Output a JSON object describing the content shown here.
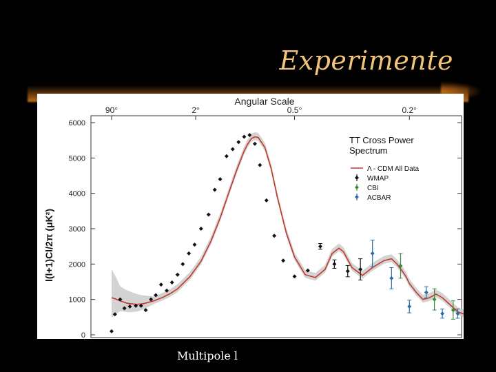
{
  "slide": {
    "title": "Experimente",
    "footer_label": "Multipole l"
  },
  "chart_data": {
    "type": "scatter",
    "title": "Angular Scale",
    "subtitle": "TT Cross Power\nSpectrum",
    "ylabel": "l(l+1)Cl/2π (μK²)",
    "ylim": [
      0,
      6000
    ],
    "yticks": [
      0,
      1000,
      2000,
      3000,
      4000,
      5000,
      6000
    ],
    "top_axis_ticks": [
      {
        "label": "90°",
        "l": 2
      },
      {
        "label": "2°",
        "l": 90
      },
      {
        "label": "0.5°",
        "l": 360
      },
      {
        "label": "0.2°",
        "l": 900
      }
    ],
    "grid": false,
    "legend_position": "top-right",
    "colors": {
      "model": "#c0392b",
      "band": "#c8c8c8",
      "wmap": "#111111",
      "cbi": "#3a8a3a",
      "acbar": "#2b6aa8"
    },
    "series": [
      {
        "name": "Λ - CDM All Data",
        "kind": "line",
        "x": [
          2,
          3,
          5,
          8,
          10,
          15,
          20,
          30,
          40,
          50,
          60,
          80,
          100,
          120,
          140,
          160,
          180,
          200,
          210,
          220,
          230,
          240,
          260,
          280,
          300,
          330,
          360,
          400,
          440,
          480,
          510,
          540,
          560,
          600,
          650,
          700,
          760,
          800,
          830,
          860,
          880,
          900,
          940,
          980,
          1020,
          1060,
          1100,
          1150,
          1200,
          1300
        ],
        "y": [
          1050,
          1020,
          960,
          900,
          880,
          860,
          880,
          960,
          1060,
          1170,
          1300,
          1650,
          2080,
          2650,
          3300,
          4000,
          4650,
          5200,
          5400,
          5550,
          5600,
          5580,
          5300,
          4700,
          3900,
          2900,
          2200,
          1700,
          1620,
          1850,
          2300,
          2450,
          2350,
          1900,
          1680,
          1900,
          2100,
          2150,
          2000,
          1800,
          1650,
          1450,
          1200,
          1000,
          1050,
          1150,
          1050,
          850,
          650,
          500
        ]
      },
      {
        "name": "WMAP",
        "kind": "points",
        "x": [
          2,
          3,
          5,
          7,
          10,
          14,
          18,
          22,
          27,
          32,
          38,
          45,
          52,
          60,
          68,
          78,
          88,
          100,
          115,
          128,
          140,
          155,
          170,
          185,
          200,
          215,
          230,
          245,
          265,
          290,
          320,
          360,
          410,
          460,
          520,
          580,
          640
        ],
        "y": [
          100,
          580,
          1000,
          750,
          800,
          820,
          820,
          700,
          1000,
          1120,
          1420,
          1250,
          1480,
          1700,
          2000,
          2300,
          2550,
          3000,
          3400,
          4100,
          4400,
          5050,
          5250,
          5450,
          5600,
          5650,
          5400,
          4800,
          3800,
          2800,
          2100,
          1650,
          1820,
          2500,
          2000,
          1800,
          1850
        ],
        "err": [
          0,
          0,
          0,
          0,
          0,
          0,
          0,
          0,
          0,
          0,
          0,
          0,
          0,
          0,
          0,
          0,
          0,
          0,
          0,
          0,
          0,
          0,
          0,
          0,
          0,
          0,
          0,
          0,
          0,
          0,
          0,
          0,
          0,
          80,
          120,
          160,
          300
        ]
      },
      {
        "name": "CBI",
        "kind": "points",
        "x": [
          850,
          1050,
          1170
        ],
        "y": [
          1950,
          1000,
          700
        ],
        "err": [
          350,
          300,
          260
        ]
      },
      {
        "name": "ACBAR",
        "kind": "points",
        "x": [
          700,
          800,
          900,
          1000,
          1100,
          1200,
          1290
        ],
        "y": [
          2300,
          1600,
          800,
          1200,
          600,
          600,
          300
        ],
        "err": [
          380,
          300,
          180,
          160,
          130,
          130,
          120
        ]
      }
    ]
  }
}
